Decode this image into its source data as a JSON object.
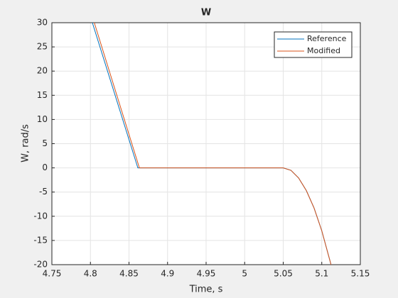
{
  "chart_data": {
    "type": "line",
    "title": "W",
    "xlabel": "Time, s",
    "ylabel": "W, rad/s",
    "series": [
      {
        "name": "Reference",
        "color": "#0072bd",
        "x": [
          4.8025,
          4.8615,
          5.05,
          5.06,
          5.07,
          5.08,
          5.09,
          5.1,
          5.112
        ],
        "values": [
          30,
          0,
          0,
          -0.5,
          -2.1,
          -4.7,
          -8.3,
          -13,
          -20
        ]
      },
      {
        "name": "Modified",
        "color": "#d95319",
        "x": [
          4.805,
          4.8635,
          5.05,
          5.06,
          5.07,
          5.08,
          5.09,
          5.1,
          5.112
        ],
        "values": [
          30,
          0,
          0,
          -0.5,
          -2.1,
          -4.7,
          -8.3,
          -13,
          -20
        ]
      }
    ],
    "xlim": [
      4.75,
      5.15
    ],
    "xticks": [
      4.75,
      4.8,
      4.85,
      4.9,
      4.95,
      5,
      5.05,
      5.1,
      5.15
    ],
    "ylim": [
      -20,
      30
    ],
    "yticks": [
      -20,
      -15,
      -10,
      -5,
      0,
      5,
      10,
      15,
      20,
      25,
      30
    ],
    "grid": true,
    "legend": "northeast"
  }
}
